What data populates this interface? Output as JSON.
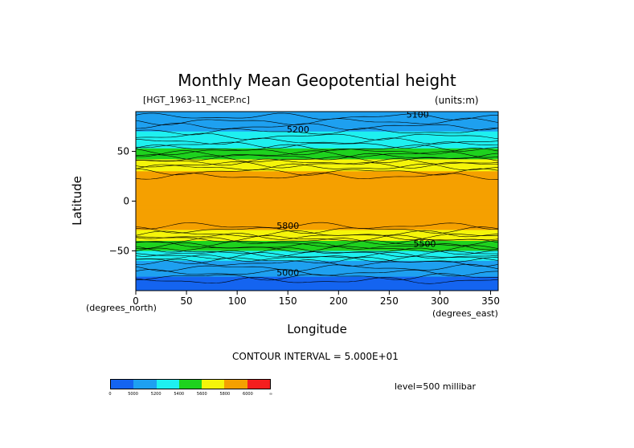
{
  "title": "Monthly Mean Geopotential height",
  "file_label": "[HGT_1963-11_NCEP.nc]",
  "units_label": "(units:m)",
  "contour_interval": "CONTOUR INTERVAL = 5.000E+01",
  "level_label": "level=500 millibar",
  "chart_data": {
    "type": "heatmap",
    "title": "Monthly Mean Geopotential height",
    "xlabel": "Longitude",
    "ylabel": "Latitude",
    "x_unit_label": "(degrees_east)",
    "y_unit_label": "(degrees_north)",
    "xlim": [
      0,
      357.5
    ],
    "ylim": [
      -90,
      90
    ],
    "xticks": [
      0,
      50,
      100,
      150,
      200,
      250,
      300,
      350
    ],
    "yticks": [
      50,
      0,
      -50
    ],
    "ytick_labels": [
      "50",
      "0",
      "−50"
    ],
    "contour_labels": [
      "5100",
      "5200",
      "5500",
      "5800",
      "5000"
    ],
    "colorbar": {
      "levels": [
        "0",
        "5000",
        "5200",
        "5400",
        "5600",
        "5800",
        "6000",
        "∞"
      ],
      "colors": [
        "#1464f0",
        "#1ea0f0",
        "#1ef0f0",
        "#1ed21e",
        "#f5f50a",
        "#f5a000",
        "#f51e1e"
      ]
    },
    "zonal_profile": [
      {
        "lat": 90,
        "value": 5000
      },
      {
        "lat": 80,
        "value": 5100
      },
      {
        "lat": 70,
        "value": 5200
      },
      {
        "lat": 60,
        "value": 5300
      },
      {
        "lat": 50,
        "value": 5450
      },
      {
        "lat": 42,
        "value": 5600
      },
      {
        "lat": 34,
        "value": 5750
      },
      {
        "lat": 25,
        "value": 5850
      },
      {
        "lat": 0,
        "value": 5880
      },
      {
        "lat": -25,
        "value": 5850
      },
      {
        "lat": -33,
        "value": 5750
      },
      {
        "lat": -40,
        "value": 5600
      },
      {
        "lat": -48,
        "value": 5450
      },
      {
        "lat": -55,
        "value": 5300
      },
      {
        "lat": -62,
        "value": 5150
      },
      {
        "lat": -72,
        "value": 5050
      },
      {
        "lat": -80,
        "value": 4950
      },
      {
        "lat": -90,
        "value": 4900
      }
    ]
  }
}
